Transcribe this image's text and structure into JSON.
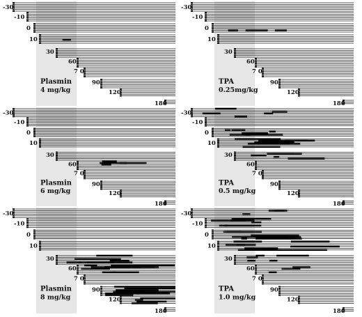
{
  "panels": [
    {
      "id": "plasmin-4",
      "drug": "Plasmin",
      "dose": "4 mg/kg",
      "time_labels": [
        "-30",
        "-10",
        "0",
        "10",
        "30",
        "60",
        "7 0",
        "90",
        "120",
        "180"
      ],
      "dense_regions": [
        {
          "time": "10",
          "strength": 0.05
        }
      ]
    },
    {
      "id": "tpa-025",
      "drug": "TPA",
      "dose": "0.25mg/kg",
      "time_labels": [
        "-30",
        "-10",
        "0",
        "10",
        "30",
        "60",
        "7 0",
        "90",
        "120",
        "180"
      ],
      "dense_regions": [
        {
          "time": "0",
          "strength": 0.3
        }
      ]
    },
    {
      "id": "plasmin-6",
      "drug": "Plasmin",
      "dose": "6 mg/kg",
      "time_labels": [
        "-30",
        "-10",
        "0",
        "10",
        "30",
        "60",
        "7 0",
        "90",
        "120",
        "180"
      ],
      "dense_regions": [
        {
          "time": "60",
          "strength": 0.4
        }
      ]
    },
    {
      "id": "tpa-05",
      "drug": "TPA",
      "dose": "0.5 mg/kg",
      "time_labels": [
        "-30",
        "-10",
        "0",
        "10",
        "30",
        "60",
        "7 0",
        "90",
        "120",
        "180"
      ],
      "dense_regions": [
        {
          "time": "-30",
          "strength": 0.5
        },
        {
          "time": "0",
          "strength": 0.6
        },
        {
          "time": "10",
          "strength": 0.8
        },
        {
          "time": "30",
          "strength": 0.5
        }
      ]
    },
    {
      "id": "plasmin-8",
      "drug": "Plasmin",
      "dose": "8 mg/kg",
      "time_labels": [
        "-30",
        "-10",
        "0",
        "10",
        "30",
        "60",
        "7 0",
        "90",
        "120",
        "180"
      ],
      "dense_regions": [
        {
          "time": "30",
          "strength": 0.7
        },
        {
          "time": "60",
          "strength": 0.95
        },
        {
          "time": "90",
          "strength": 0.95
        },
        {
          "time": "120",
          "strength": 0.5
        }
      ]
    },
    {
      "id": "tpa-10",
      "drug": "TPA",
      "dose": "1.0 mg/kg",
      "time_labels": [
        "-30",
        "-10",
        "0",
        "10",
        "30",
        "60",
        "7 0",
        "90",
        "120",
        "180"
      ],
      "dense_regions": [
        {
          "time": "-30",
          "strength": 0.3
        },
        {
          "time": "-10",
          "strength": 0.6
        },
        {
          "time": "0",
          "strength": 0.95
        },
        {
          "time": "10",
          "strength": 0.9
        },
        {
          "time": "30",
          "strength": 0.5
        },
        {
          "time": "60",
          "strength": 0.3
        }
      ]
    }
  ]
}
